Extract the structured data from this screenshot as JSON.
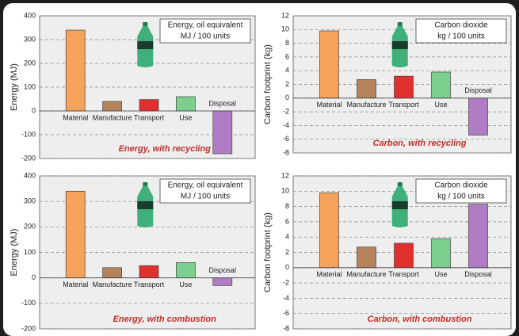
{
  "chart_data": [
    {
      "type": "bar",
      "y_label": "Energy (MJ)",
      "unit_label": [
        "Energy, oil equivalent",
        "MJ / 100 units"
      ],
      "annotation": "Energy, with recycling",
      "categories": [
        "Material",
        "Manufacture",
        "Transport",
        "Use",
        "Disposal"
      ],
      "values": [
        340,
        40,
        48,
        60,
        -180
      ],
      "colors": [
        "#f5a35c",
        "#b5835a",
        "#e0302e",
        "#7ccf8f",
        "#b07cc6"
      ],
      "ylim": [
        -200,
        400
      ],
      "yticks": [
        -200,
        -100,
        0,
        100,
        200,
        300,
        400
      ],
      "grid": true
    },
    {
      "type": "bar",
      "y_label": "Carbon footprint (kg)",
      "unit_label": [
        "Carbon dioxide",
        "kg / 100 units"
      ],
      "annotation": "Carbon, with recycling",
      "categories": [
        "Material",
        "Manufacture",
        "Transport",
        "Use",
        "Disposal"
      ],
      "values": [
        9.8,
        2.7,
        3.2,
        3.8,
        -5.4
      ],
      "colors": [
        "#f5a35c",
        "#b5835a",
        "#e0302e",
        "#7ccf8f",
        "#b07cc6"
      ],
      "ylim": [
        -8,
        12
      ],
      "yticks": [
        -8,
        -6,
        -4,
        -2,
        0,
        2,
        4,
        6,
        8,
        10,
        12
      ],
      "grid": true
    },
    {
      "type": "bar",
      "y_label": "Energy (MJ)",
      "unit_label": [
        "Energy, oil equivalent",
        "MJ / 100 units"
      ],
      "annotation": "Energy, with combustion",
      "categories": [
        "Material",
        "Manufacture",
        "Transport",
        "Use",
        "Disposal"
      ],
      "values": [
        340,
        40,
        48,
        60,
        -30
      ],
      "colors": [
        "#f5a35c",
        "#b5835a",
        "#e0302e",
        "#7ccf8f",
        "#b07cc6"
      ],
      "ylim": [
        -200,
        400
      ],
      "yticks": [
        -200,
        -100,
        0,
        100,
        200,
        300,
        400
      ],
      "grid": true
    },
    {
      "type": "bar",
      "y_label": "Carbon footprint (kg)",
      "unit_label": [
        "Carbon dioxide",
        "kg / 100 units"
      ],
      "annotation": "Carbon, with combustion",
      "categories": [
        "Material",
        "Manufacture",
        "Transport",
        "Use",
        "Disposal"
      ],
      "values": [
        9.8,
        2.7,
        3.2,
        3.8,
        8.3
      ],
      "colors": [
        "#f5a35c",
        "#b5835a",
        "#e0302e",
        "#7ccf8f",
        "#b07cc6"
      ],
      "ylim": [
        -8,
        12
      ],
      "yticks": [
        -8,
        -6,
        -4,
        -2,
        0,
        2,
        4,
        6,
        8,
        10,
        12
      ],
      "grid": true
    }
  ]
}
